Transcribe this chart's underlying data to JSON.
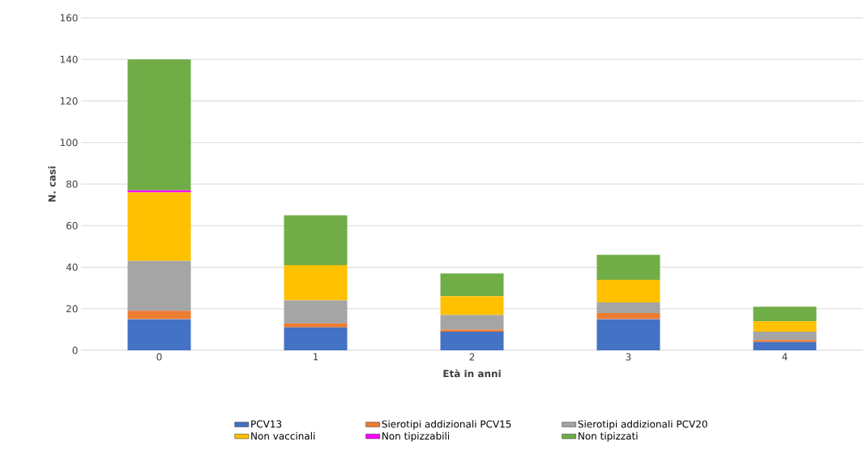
{
  "chart_data": {
    "type": "bar",
    "stacked": true,
    "xlabel": "Età in anni",
    "ylabel": "N. casi",
    "categories": [
      "0",
      "1",
      "2",
      "3",
      "4"
    ],
    "series": [
      {
        "name": "PCV13",
        "color": "#4472c4",
        "values": [
          15,
          11,
          9,
          15,
          4
        ]
      },
      {
        "name": "Sierotipi addizionali PCV15",
        "color": "#ed7d31",
        "values": [
          4,
          2,
          1,
          3,
          1
        ]
      },
      {
        "name": "Sierotipi addizionali PCV20",
        "color": "#a5a5a5",
        "values": [
          24,
          11,
          7,
          5,
          4
        ]
      },
      {
        "name": "Non vaccinali",
        "color": "#ffc000",
        "values": [
          33,
          17,
          9,
          11,
          5
        ]
      },
      {
        "name": "Non tipizzabili",
        "color": "#ff00ff",
        "values": [
          1,
          0,
          0,
          0,
          0
        ]
      },
      {
        "name": "Non tipizzati",
        "color": "#70ad47",
        "values": [
          63,
          24,
          11,
          12,
          7
        ]
      }
    ],
    "ylim": [
      0,
      160
    ],
    "yticks": [
      0,
      20,
      40,
      60,
      80,
      100,
      120,
      140,
      160
    ],
    "grid": "y",
    "legend": "bottom"
  }
}
